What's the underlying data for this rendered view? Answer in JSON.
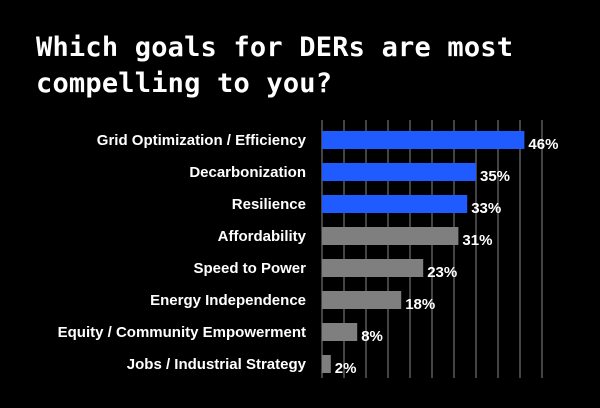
{
  "chart_data": {
    "type": "bar",
    "orientation": "horizontal",
    "title": "Which goals for DERs are most compelling to you?",
    "categories": [
      "Grid Optimization / Efficiency",
      "Decarbonization",
      "Resilience",
      "Affordability",
      "Speed to Power",
      "Energy Independence",
      "Equity / Community Empowerment",
      "Jobs / Industrial Strategy"
    ],
    "values": [
      46,
      35,
      33,
      31,
      23,
      18,
      8,
      2
    ],
    "value_labels": [
      "46%",
      "35%",
      "33%",
      "31%",
      "23%",
      "18%",
      "8%",
      "2%"
    ],
    "bar_colors": [
      "#1f5bff",
      "#1f5bff",
      "#1f5bff",
      "#7f7f7f",
      "#7f7f7f",
      "#7f7f7f",
      "#7f7f7f",
      "#7f7f7f"
    ],
    "xlim": [
      0,
      50
    ],
    "grid": "vertical"
  }
}
